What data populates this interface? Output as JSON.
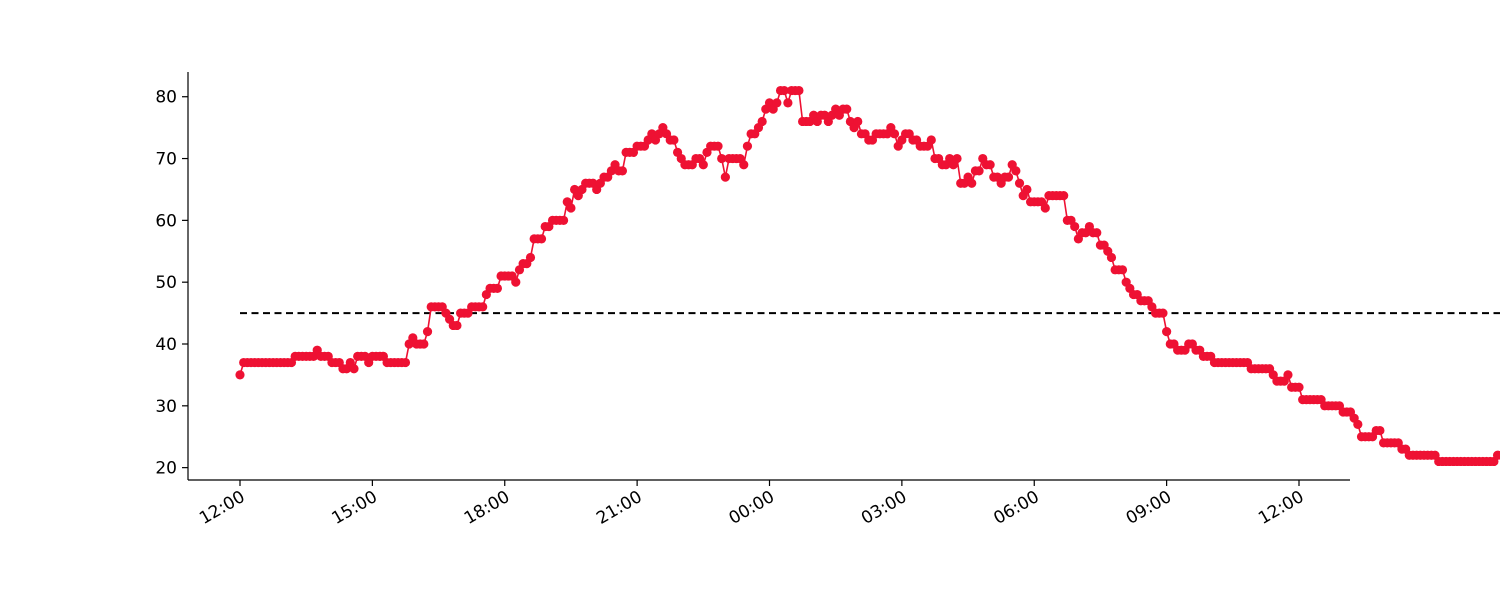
{
  "chart_data": {
    "type": "line",
    "title": "",
    "xlabel": "",
    "ylabel": "",
    "x_start": "12:00",
    "x_step_minutes": 5,
    "xlim": [
      "12:00",
      "12:00 (+1 day)"
    ],
    "ylim": [
      18,
      84
    ],
    "x_tick_labels": [
      "12:00",
      "15:00",
      "18:00",
      "21:00",
      "00:00",
      "03:00",
      "06:00",
      "09:00",
      "12:00"
    ],
    "y_ticks": [
      20,
      30,
      40,
      50,
      60,
      70,
      80
    ],
    "y_tick_labels": [
      "20",
      "30",
      "40",
      "50",
      "60",
      "70",
      "80"
    ],
    "reference_line": {
      "y": 45,
      "style": "dashed",
      "color": "#000000"
    },
    "series": [
      {
        "color": "#ee1133",
        "marker": "circle",
        "values": [
          35,
          37,
          37,
          37,
          37,
          37,
          37,
          37,
          37,
          37,
          37,
          37,
          37,
          37,
          37,
          38,
          38,
          38,
          38,
          38,
          38,
          39,
          38,
          38,
          38,
          37,
          37,
          37,
          36,
          36,
          37,
          36,
          38,
          38,
          38,
          37,
          38,
          38,
          38,
          38,
          37,
          37,
          37,
          37,
          37,
          37,
          40,
          41,
          40,
          40,
          40,
          42,
          46,
          46,
          46,
          46,
          45,
          44,
          43,
          43,
          45,
          45,
          45,
          46,
          46,
          46,
          46,
          48,
          49,
          49,
          49,
          51,
          51,
          51,
          51,
          50,
          52,
          53,
          53,
          54,
          57,
          57,
          57,
          59,
          59,
          60,
          60,
          60,
          60,
          63,
          62,
          65,
          64,
          65,
          66,
          66,
          66,
          65,
          66,
          67,
          67,
          68,
          69,
          68,
          68,
          71,
          71,
          71,
          72,
          72,
          72,
          73,
          74,
          73,
          74,
          75,
          74,
          73,
          73,
          71,
          70,
          69,
          69,
          69,
          70,
          70,
          69,
          71,
          72,
          72,
          72,
          70,
          67,
          70,
          70,
          70,
          70,
          69,
          72,
          74,
          74,
          75,
          76,
          78,
          79,
          78,
          79,
          81,
          81,
          79,
          81,
          81,
          81,
          76,
          76,
          76,
          77,
          76,
          77,
          77,
          76,
          77,
          78,
          77,
          78,
          78,
          76,
          75,
          76,
          74,
          74,
          73,
          73,
          74,
          74,
          74,
          74,
          75,
          74,
          72,
          73,
          74,
          74,
          73,
          73,
          72,
          72,
          72,
          73,
          70,
          70,
          69,
          69,
          70,
          69,
          70,
          66,
          66,
          67,
          66,
          68,
          68,
          70,
          69,
          69,
          67,
          67,
          66,
          67,
          67,
          69,
          68,
          66,
          64,
          65,
          63,
          63,
          63,
          63,
          62,
          64,
          64,
          64,
          64,
          64,
          60,
          60,
          59,
          57,
          58,
          58,
          59,
          58,
          58,
          56,
          56,
          55,
          54,
          52,
          52,
          52,
          50,
          49,
          48,
          48,
          47,
          47,
          47,
          46,
          45,
          45,
          45,
          42,
          40,
          40,
          39,
          39,
          39,
          40,
          40,
          39,
          39,
          38,
          38,
          38,
          37,
          37,
          37,
          37,
          37,
          37,
          37,
          37,
          37,
          37,
          36,
          36,
          36,
          36,
          36,
          36,
          35,
          34,
          34,
          34,
          35,
          33,
          33,
          33,
          31,
          31,
          31,
          31,
          31,
          31,
          30,
          30,
          30,
          30,
          30,
          29,
          29,
          29,
          28,
          27,
          25,
          25,
          25,
          25,
          26,
          26,
          24,
          24,
          24,
          24,
          24,
          23,
          23,
          22,
          22,
          22,
          22,
          22,
          22,
          22,
          22,
          21,
          21,
          21,
          21,
          21,
          21,
          21,
          21,
          21,
          21,
          21,
          21,
          21,
          21,
          21,
          21,
          22,
          22
        ]
      }
    ]
  }
}
